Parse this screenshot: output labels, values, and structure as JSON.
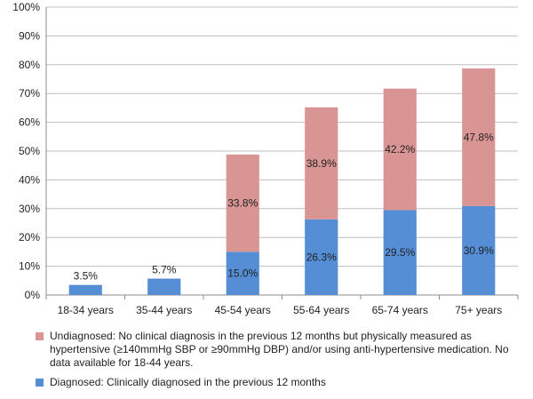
{
  "chart_data": {
    "type": "bar",
    "stacked": true,
    "categories": [
      "18-34 years",
      "35-44 years",
      "45-54 years",
      "55-64 years",
      "65-74 years",
      "75+ years"
    ],
    "series": [
      {
        "key": "diagnosed",
        "values": [
          3.5,
          5.7,
          15.0,
          26.3,
          29.5,
          30.9
        ],
        "labels": [
          "3.5%",
          "5.7%",
          "15.0%",
          "26.3%",
          "29.5%",
          "30.9%"
        ],
        "color": "#558ED5"
      },
      {
        "key": "undiagnosed",
        "values": [
          null,
          null,
          33.8,
          38.9,
          42.2,
          47.8
        ],
        "labels": [
          "",
          "",
          "33.8%",
          "38.9%",
          "42.2%",
          "47.8%"
        ],
        "color": "#D99594"
      }
    ],
    "ylim": [
      0,
      100
    ],
    "yticks": [
      "0%",
      "10%",
      "20%",
      "30%",
      "40%",
      "50%",
      "60%",
      "70%",
      "80%",
      "90%",
      "100%"
    ],
    "grid": true,
    "legend": {
      "position": "bottom",
      "items": [
        {
          "series": "undiagnosed",
          "text": "Undiagnosed: No clinical diagnosis in the previous 12 months but physically measured as hypertensive (≥140mmHg SBP or ≥90mmHg DBP) and/or using anti-hypertensive medication. No data available for 18-44 years.",
          "color": "#D99594"
        },
        {
          "series": "diagnosed",
          "text": "Diagnosed: Clinically diagnosed in the previous 12 months",
          "color": "#558ED5"
        }
      ]
    }
  }
}
